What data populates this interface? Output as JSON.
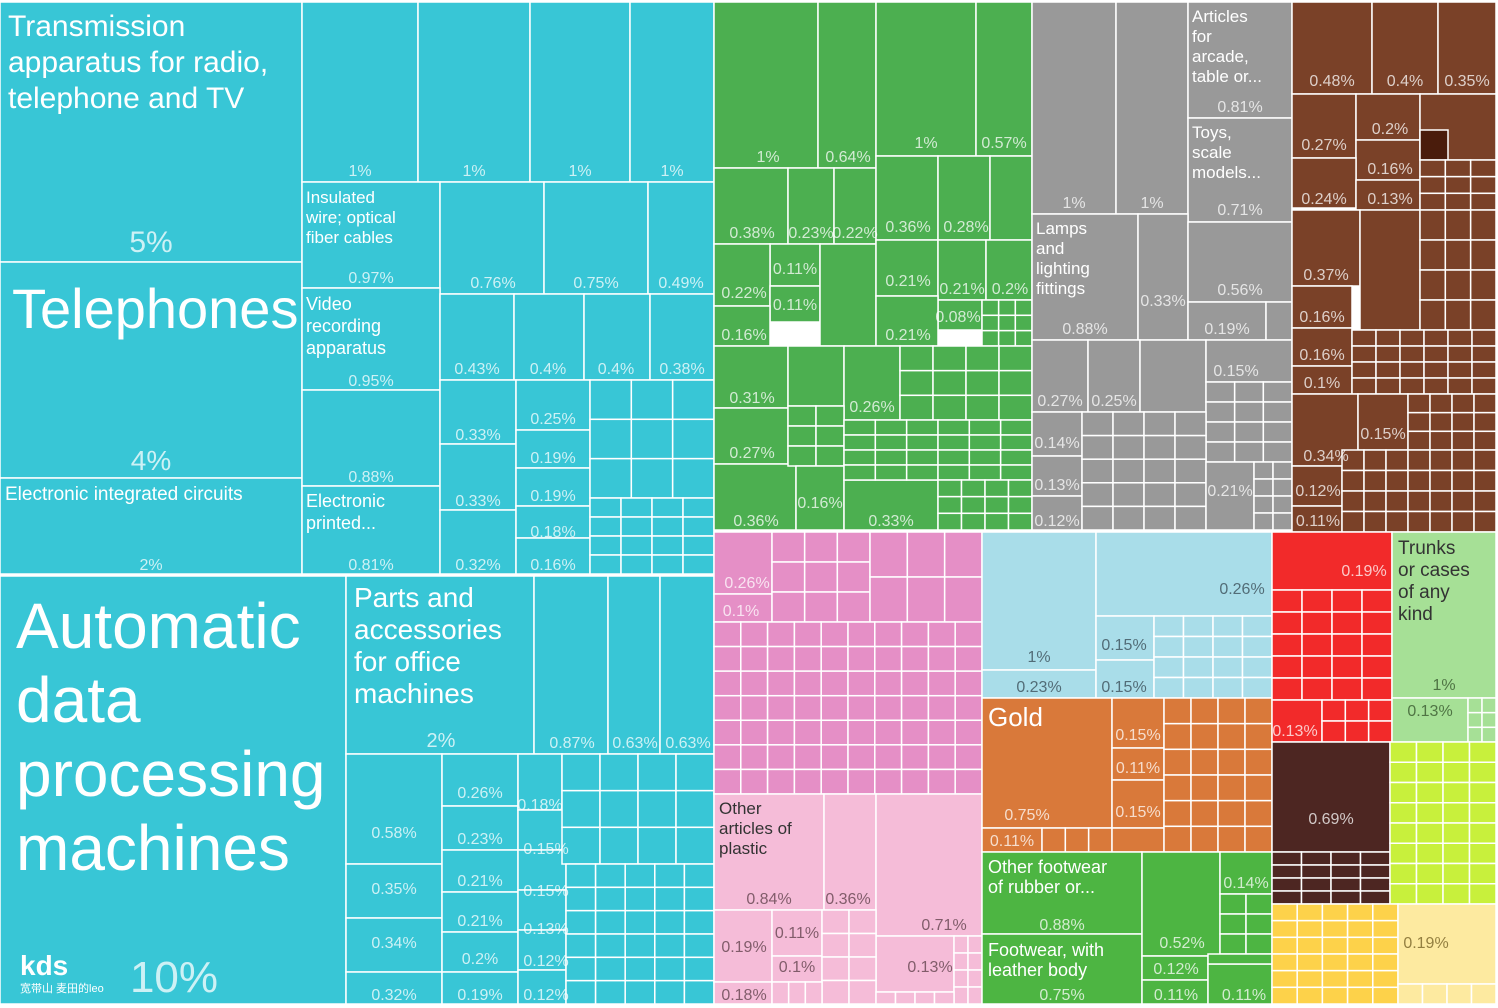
{
  "chart_data": {
    "type": "treemap",
    "colors": {
      "electronics": "#38c6d6",
      "machinery_green": "#4caf50",
      "misc_gray": "#999999",
      "brown": "#7a4128",
      "pink": "#e58fc6",
      "light_pink": "#f5bcd8",
      "light_blue": "#a9dde9",
      "orange": "#d9793a",
      "green_footwear": "#4db542",
      "red": "#f22a2a",
      "light_green": "#a6e096",
      "dark_maroon": "#4d2622",
      "yellow_green": "#c8f03c",
      "yellow": "#fdd24a",
      "cream": "#fdeaa0",
      "border": "#ffffff"
    },
    "blocks": [
      {
        "label": "Transmission apparatus for radio, telephone and TV",
        "value": "5%",
        "group": "electronics"
      },
      {
        "label": "Telephones",
        "value": "4%",
        "group": "electronics"
      },
      {
        "label": "Electronic integrated circuits",
        "value": "2%",
        "group": "electronics"
      },
      {
        "label": "Automatic data processing machines",
        "value": "10%",
        "group": "electronics"
      },
      {
        "label": "Parts and accessories for office machines",
        "value": "2%",
        "group": "electronics"
      },
      {
        "label": "Insulated wire; optical fiber cables",
        "value": "0.97%",
        "group": "electronics"
      },
      {
        "label": "Video recording apparatus",
        "value": "0.95%",
        "group": "electronics"
      },
      {
        "label": "Electronic printed...",
        "value": "0.81%",
        "group": "electronics"
      },
      {
        "label": "",
        "value": "0.88%",
        "group": "electronics"
      },
      {
        "label": "Lamps and lighting fittings",
        "value": "0.88%",
        "group": "misc_gray"
      },
      {
        "label": "Articles for arcade, table or...",
        "value": "0.81%",
        "group": "misc_gray"
      },
      {
        "label": "Toys, scale models...",
        "value": "0.71%",
        "group": "misc_gray"
      },
      {
        "label": "Other articles of plastic",
        "value": "0.84%",
        "group": "light_pink"
      },
      {
        "label": "Gold",
        "value": "0.75%",
        "group": "orange"
      },
      {
        "label": "Other footwear of rubber or...",
        "value": "0.88%",
        "group": "green_footwear"
      },
      {
        "label": "Footwear, with leather body",
        "value": "0.75%",
        "group": "green_footwear"
      },
      {
        "label": "Trunks or cases of any kind",
        "value": "1%",
        "group": "light_green"
      },
      {
        "label": "",
        "value": "0.69%",
        "group": "dark_maroon"
      }
    ],
    "value_labels": {
      "electronics": [
        "1%",
        "1%",
        "1%",
        "1%",
        "0.76%",
        "0.75%",
        "0.49%",
        "0.43%",
        "0.4%",
        "0.4%",
        "0.38%",
        "0.33%",
        "0.25%",
        "0.19%",
        "0.19%",
        "0.33%",
        "0.18%",
        "0.32%",
        "0.16%",
        "0.87%",
        "0.63%",
        "0.63%",
        "0.58%",
        "0.26%",
        "0.18%",
        "0.23%",
        "0.15%",
        "0.35%",
        "0.21%",
        "0.15%",
        "0.34%",
        "0.21%",
        "0.13%",
        "0.2%",
        "0.12%",
        "0.32%",
        "0.19%",
        "0.12%"
      ],
      "machinery_green": [
        "1%",
        "0.64%",
        "1%",
        "0.57%",
        "0.38%",
        "0.23%",
        "0.22%",
        "0.36%",
        "0.28%",
        "0.11%",
        "0.22%",
        "0.11%",
        "0.21%",
        "0.21%",
        "0.2%",
        "0.08%",
        "0.16%",
        "0.21%",
        "0.31%",
        "0.26%",
        "0.27%",
        "0.16%",
        "0.36%",
        "0.33%"
      ],
      "misc_gray": [
        "1%",
        "1%",
        "0.33%",
        "0.56%",
        "0.19%",
        "0.15%",
        "0.27%",
        "0.25%",
        "0.14%",
        "0.13%",
        "0.21%",
        "0.12%"
      ],
      "brown": [
        "0.48%",
        "0.4%",
        "0.35%",
        "0.27%",
        "0.2%",
        "0.16%",
        "0.24%",
        "0.13%",
        "0.37%",
        "0.16%",
        "0.16%",
        "0.1%",
        "0.15%",
        "0.34%",
        "0.12%",
        "0.11%"
      ],
      "pink": [
        "0.26%",
        "0.1%"
      ],
      "light_pink": [
        "0.36%",
        "0.71%",
        "0.19%",
        "0.11%",
        "0.1%",
        "0.13%",
        "0.18%"
      ],
      "light_blue": [
        "0.26%",
        "1%",
        "0.15%",
        "0.23%",
        "0.15%"
      ],
      "orange": [
        "0.15%",
        "0.11%",
        "0.15%",
        "0.11%"
      ],
      "green_footwear": [
        "0.14%",
        "0.52%",
        "0.12%",
        "0.11%",
        "0.11%"
      ],
      "red": [
        "0.19%",
        "0.13%"
      ],
      "light_green": [
        "0.13%"
      ],
      "yellow": [
        "0.19%"
      ]
    }
  },
  "logo": {
    "text": "kds",
    "subtitle": "宽带山 麦田的leo"
  }
}
